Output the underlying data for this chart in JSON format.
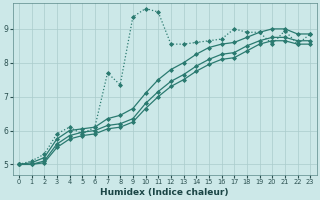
{
  "title": "",
  "xlabel": "Humidex (Indice chaleur)",
  "background_color": "#cce8e8",
  "grid_color": "#aacccc",
  "line_color": "#2a7a70",
  "xlim": [
    -0.5,
    23.5
  ],
  "ylim": [
    4.7,
    9.75
  ],
  "xticks": [
    0,
    1,
    2,
    3,
    4,
    5,
    6,
    7,
    8,
    9,
    10,
    11,
    12,
    13,
    14,
    15,
    16,
    17,
    18,
    19,
    20,
    21,
    22,
    23
  ],
  "yticks": [
    5,
    6,
    7,
    8,
    9
  ],
  "series": [
    {
      "y": [
        5.0,
        5.1,
        5.3,
        5.9,
        6.1,
        5.9,
        6.1,
        7.7,
        7.35,
        9.35,
        9.6,
        9.5,
        8.55,
        8.55,
        8.6,
        8.65,
        8.7,
        9.0,
        8.9,
        8.9,
        8.55,
        8.95,
        8.55,
        8.85
      ],
      "linestyle": "dotted",
      "linewidth": 0.9,
      "marker": "D",
      "markersize": 2.0
    },
    {
      "y": [
        5.0,
        5.05,
        5.2,
        5.75,
        6.0,
        6.05,
        6.1,
        6.35,
        6.45,
        6.65,
        7.1,
        7.5,
        7.8,
        8.0,
        8.25,
        8.45,
        8.55,
        8.6,
        8.75,
        8.9,
        9.0,
        9.0,
        8.85,
        8.85
      ],
      "linestyle": "solid",
      "linewidth": 0.9,
      "marker": "D",
      "markersize": 2.0
    },
    {
      "y": [
        5.0,
        5.0,
        5.1,
        5.6,
        5.85,
        5.95,
        6.0,
        6.15,
        6.2,
        6.35,
        6.8,
        7.15,
        7.45,
        7.65,
        7.9,
        8.1,
        8.25,
        8.3,
        8.5,
        8.65,
        8.75,
        8.75,
        8.65,
        8.65
      ],
      "linestyle": "solid",
      "linewidth": 0.9,
      "marker": "D",
      "markersize": 2.0
    },
    {
      "y": [
        5.0,
        5.0,
        5.05,
        5.5,
        5.75,
        5.85,
        5.9,
        6.05,
        6.1,
        6.25,
        6.65,
        7.0,
        7.3,
        7.5,
        7.75,
        7.95,
        8.1,
        8.15,
        8.35,
        8.55,
        8.65,
        8.65,
        8.55,
        8.55
      ],
      "linestyle": "solid",
      "linewidth": 0.9,
      "marker": "D",
      "markersize": 2.0
    }
  ]
}
